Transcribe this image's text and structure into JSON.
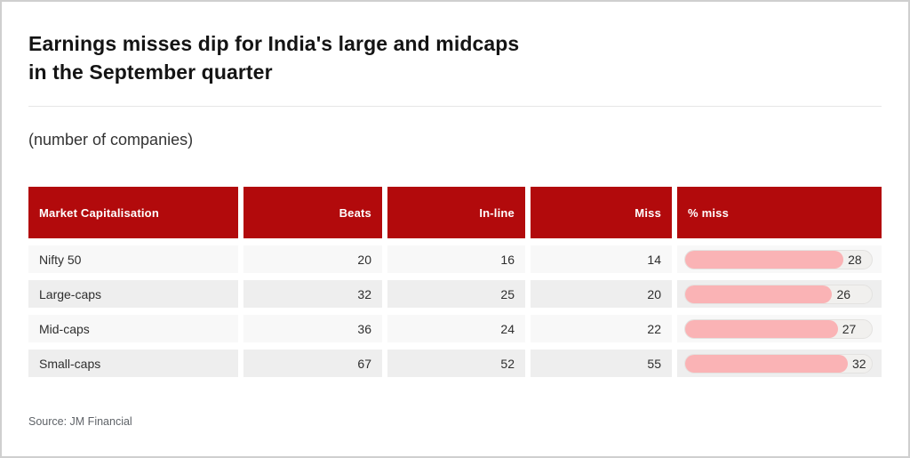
{
  "header": {
    "title_line1": "Earnings misses dip for India's large and midcaps",
    "title_line2": "in the September quarter",
    "subtitle": "(number of companies)"
  },
  "source_note": "Source: JM Financial",
  "colors": {
    "card_bg": "#ffffff",
    "card_border": "#cfcfcf",
    "title_text": "#141414",
    "subtitle_text": "#333333",
    "divider": "#e6e6e6",
    "header_red": "#b20a0c",
    "row_light": "#f8f8f8",
    "row_dark": "#eeeeee",
    "cell_text": "#2e2e2e",
    "bar_pink": "#fab3b5",
    "bar_track": "#f1f0ee",
    "bar_track_border": "#e3e2e0",
    "source_text": "#5f6368"
  },
  "chart_data": {
    "type": "table",
    "title": "Earnings misses dip for India's large and midcaps in the September quarter",
    "subtitle": "(number of companies)",
    "columns": [
      "Market Capitalisation",
      "Beats",
      "In-line",
      "Miss",
      "% miss"
    ],
    "rows": [
      {
        "label": "Nifty 50",
        "beats": 20,
        "in_line": 16,
        "miss": 14,
        "pct_miss": 28
      },
      {
        "label": "Large-caps",
        "beats": 32,
        "in_line": 25,
        "miss": 20,
        "pct_miss": 26
      },
      {
        "label": "Mid-caps",
        "beats": 36,
        "in_line": 24,
        "miss": 22,
        "pct_miss": 27
      },
      {
        "label": "Small-caps",
        "beats": 67,
        "in_line": 52,
        "miss": 55,
        "pct_miss": 32
      }
    ],
    "bar_scale_max": 33,
    "legend_position": "none",
    "grid": "off",
    "source": "JM Financial"
  }
}
